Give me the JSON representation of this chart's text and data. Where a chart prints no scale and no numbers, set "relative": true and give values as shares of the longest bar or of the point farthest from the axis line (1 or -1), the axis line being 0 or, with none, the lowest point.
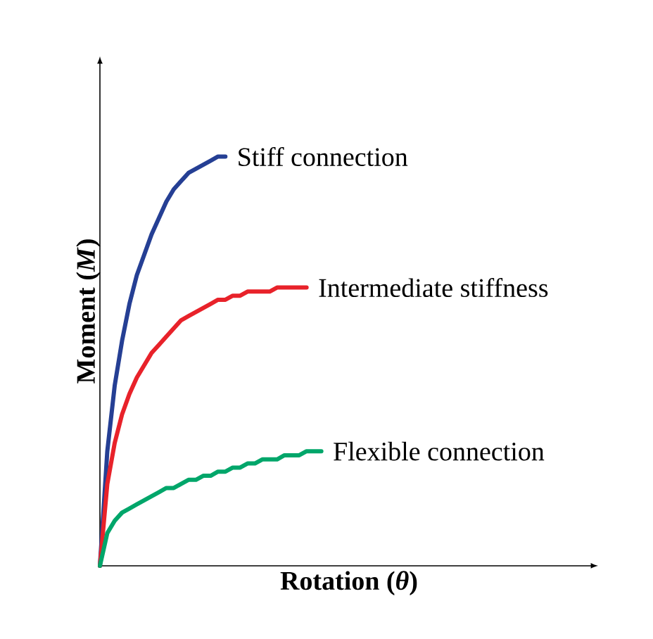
{
  "chart_data": {
    "type": "line",
    "relative": true,
    "xlabel": "Rotation (*θ*)",
    "ylabel": "Moment (*M*)",
    "legend": false,
    "categories": [
      null,
      null,
      null,
      null,
      null,
      null,
      null,
      null,
      null,
      null,
      null,
      null,
      null,
      null,
      null,
      null,
      null,
      null,
      null,
      null,
      null,
      null,
      null,
      null,
      null,
      null,
      null,
      null,
      null,
      null,
      null
    ],
    "series": [
      {
        "name": "Stiff connection",
        "color": "#253f94",
        "values": [
          0,
          0.28,
          0.44,
          0.55,
          0.64,
          0.71,
          0.76,
          0.81,
          0.85,
          0.89,
          0.92,
          0.94,
          0.96,
          0.97,
          0.98,
          0.99,
          1.0,
          1.0,
          null,
          null,
          null,
          null,
          null,
          null,
          null,
          null,
          null,
          null,
          null,
          null,
          null
        ]
      },
      {
        "name": "Intermediate stiffness",
        "color": "#e8222a",
        "values": [
          0,
          0.2,
          0.3,
          0.37,
          0.42,
          0.46,
          0.49,
          0.52,
          0.54,
          0.56,
          0.58,
          0.6,
          0.61,
          0.62,
          0.63,
          0.64,
          0.65,
          0.65,
          0.66,
          0.66,
          0.67,
          0.67,
          0.67,
          0.67,
          0.68,
          0.68,
          0.68,
          0.68,
          0.68,
          null,
          null
        ]
      },
      {
        "name": "Flexible connection",
        "color": "#00a66a",
        "values": [
          0,
          0.08,
          0.11,
          0.13,
          0.14,
          0.15,
          0.16,
          0.17,
          0.18,
          0.19,
          0.19,
          0.2,
          0.21,
          0.21,
          0.22,
          0.22,
          0.23,
          0.23,
          0.24,
          0.24,
          0.25,
          0.25,
          0.26,
          0.26,
          0.26,
          0.27,
          0.27,
          0.27,
          0.28,
          0.28,
          0.28
        ]
      }
    ]
  }
}
